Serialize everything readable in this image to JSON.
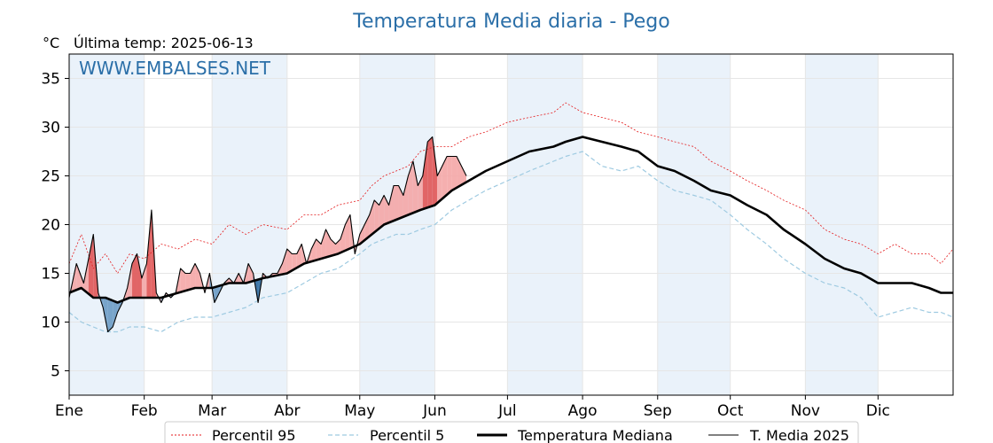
{
  "chart_data": {
    "type": "line",
    "title": "Temperatura Media diaria - Pego",
    "unit_label": "°C",
    "subtitle": "Última temp: 2025-06-13",
    "watermark": "WWW.EMBALSES.NET",
    "ylim": [
      2.5,
      37.5
    ],
    "y_ticks": [
      5,
      10,
      15,
      20,
      25,
      30,
      35
    ],
    "x_domain_days": [
      0,
      365
    ],
    "x_ticks": [
      {
        "label": "Ene",
        "day": 0
      },
      {
        "label": "Feb",
        "day": 31
      },
      {
        "label": "Mar",
        "day": 59
      },
      {
        "label": "Abr",
        "day": 90
      },
      {
        "label": "May",
        "day": 120
      },
      {
        "label": "Jun",
        "day": 151
      },
      {
        "label": "Jul",
        "day": 181
      },
      {
        "label": "Ago",
        "day": 212
      },
      {
        "label": "Sep",
        "day": 243
      },
      {
        "label": "Oct",
        "day": 273
      },
      {
        "label": "Nov",
        "day": 304
      },
      {
        "label": "Dic",
        "day": 334
      }
    ],
    "grid": true,
    "legend_position": "bottom",
    "colors": {
      "p95": "#e41a1c",
      "p5": "#9ecae1",
      "median": "#000000",
      "year": "#000000",
      "above_fill": "#f4a6a6",
      "above_fill_strong": "#e05555",
      "below_fill": "#6c9bc4",
      "below_fill_strong": "#2f6aa0",
      "band": "#eaf2fa",
      "title": "#2b6fa8"
    },
    "series": [
      {
        "name": "Percentil 95",
        "style": "dashed-thin",
        "x": [
          0,
          5,
          10,
          15,
          20,
          25,
          31,
          38,
          45,
          52,
          59,
          66,
          73,
          80,
          90,
          97,
          104,
          111,
          120,
          125,
          130,
          135,
          140,
          145,
          151,
          158,
          165,
          172,
          181,
          190,
          200,
          205,
          212,
          220,
          228,
          235,
          243,
          250,
          258,
          265,
          273,
          280,
          288,
          295,
          304,
          312,
          320,
          327,
          334,
          341,
          348,
          355,
          360,
          365
        ],
        "y": [
          16,
          19,
          15.5,
          17,
          15,
          17,
          16.5,
          18,
          17.5,
          18.5,
          18,
          20,
          19,
          20,
          19.5,
          21,
          21,
          22,
          22.5,
          24,
          25,
          25.5,
          26,
          27.5,
          28,
          28,
          29,
          29.5,
          30.5,
          31,
          31.5,
          32.5,
          31.5,
          31,
          30.5,
          29.5,
          29,
          28.5,
          28,
          26.5,
          25.5,
          24.5,
          23.5,
          22.5,
          21.5,
          19.5,
          18.5,
          18,
          17,
          18,
          17,
          17,
          16,
          17.5
        ]
      },
      {
        "name": "Percentil 5",
        "style": "dashed-thin",
        "x": [
          0,
          5,
          10,
          15,
          20,
          25,
          31,
          38,
          45,
          52,
          59,
          66,
          73,
          80,
          90,
          97,
          104,
          111,
          120,
          125,
          130,
          135,
          140,
          145,
          151,
          158,
          165,
          172,
          181,
          190,
          200,
          205,
          212,
          220,
          228,
          235,
          243,
          250,
          258,
          265,
          273,
          280,
          288,
          295,
          304,
          312,
          320,
          327,
          334,
          341,
          348,
          355,
          360,
          365
        ],
        "y": [
          11,
          10,
          9.5,
          9,
          9,
          9.5,
          9.5,
          9,
          10,
          10.5,
          10.5,
          11,
          11.5,
          12.5,
          13,
          14,
          15,
          15.5,
          17,
          18,
          18.5,
          19,
          19,
          19.5,
          20,
          21.5,
          22.5,
          23.5,
          24.5,
          25.5,
          26.5,
          27,
          27.5,
          26,
          25.5,
          26,
          24.5,
          23.5,
          23,
          22.5,
          21,
          19.5,
          18,
          16.5,
          15,
          14,
          13.5,
          12.5,
          10.5,
          11,
          11.5,
          11,
          11,
          10.5
        ]
      },
      {
        "name": "Temperatura Mediana",
        "style": "solid-thick",
        "x": [
          0,
          5,
          10,
          15,
          20,
          25,
          31,
          38,
          45,
          52,
          59,
          66,
          73,
          80,
          90,
          97,
          104,
          111,
          120,
          125,
          130,
          135,
          140,
          145,
          151,
          158,
          165,
          172,
          181,
          190,
          200,
          205,
          212,
          220,
          228,
          235,
          243,
          250,
          258,
          265,
          273,
          280,
          288,
          295,
          304,
          312,
          320,
          327,
          334,
          341,
          348,
          355,
          360,
          365
        ],
        "y": [
          13,
          13.5,
          12.5,
          12.5,
          12,
          12.5,
          12.5,
          12.5,
          13,
          13.5,
          13.5,
          14,
          14,
          14.5,
          15,
          16,
          16.5,
          17,
          18,
          19,
          20,
          20.5,
          21,
          21.5,
          22,
          23.5,
          24.5,
          25.5,
          26.5,
          27.5,
          28,
          28.5,
          29,
          28.5,
          28,
          27.5,
          26,
          25.5,
          24.5,
          23.5,
          23,
          22,
          21,
          19.5,
          18,
          16.5,
          15.5,
          15,
          14,
          14,
          14,
          13.5,
          13,
          13
        ]
      },
      {
        "name": "T. Media 2025",
        "style": "solid-thin",
        "x": [
          0,
          3,
          6,
          8,
          10,
          12,
          14,
          16,
          18,
          20,
          22,
          24,
          26,
          28,
          30,
          32,
          34,
          36,
          38,
          40,
          42,
          44,
          46,
          48,
          50,
          52,
          54,
          56,
          58,
          60,
          62,
          64,
          66,
          68,
          70,
          72,
          74,
          76,
          78,
          80,
          82,
          84,
          86,
          88,
          90,
          92,
          94,
          96,
          98,
          100,
          102,
          104,
          106,
          108,
          110,
          112,
          114,
          116,
          118,
          120,
          122,
          124,
          126,
          128,
          130,
          132,
          134,
          136,
          138,
          140,
          142,
          144,
          146,
          148,
          150,
          152,
          154,
          156,
          158,
          160,
          162,
          164
        ],
        "y": [
          12.5,
          16,
          14,
          16.5,
          19,
          13,
          11.5,
          9,
          9.5,
          11,
          12,
          13.5,
          16,
          17,
          14.5,
          16,
          21.5,
          13,
          12,
          13,
          12.5,
          13,
          15.5,
          15,
          15,
          16,
          15,
          13,
          15,
          12,
          13,
          14,
          14.5,
          14,
          15,
          14,
          16,
          15,
          12,
          15,
          14.5,
          15,
          15,
          16,
          17.5,
          17,
          17,
          18,
          16,
          17.5,
          18.5,
          18,
          19.5,
          18.5,
          18,
          18.5,
          20,
          21,
          17,
          19,
          20,
          21,
          22.5,
          22,
          23,
          22,
          24,
          24,
          23,
          25,
          26.5,
          24,
          25,
          28.5,
          29,
          25,
          26,
          27,
          27,
          27,
          26,
          25
        ]
      }
    ]
  }
}
